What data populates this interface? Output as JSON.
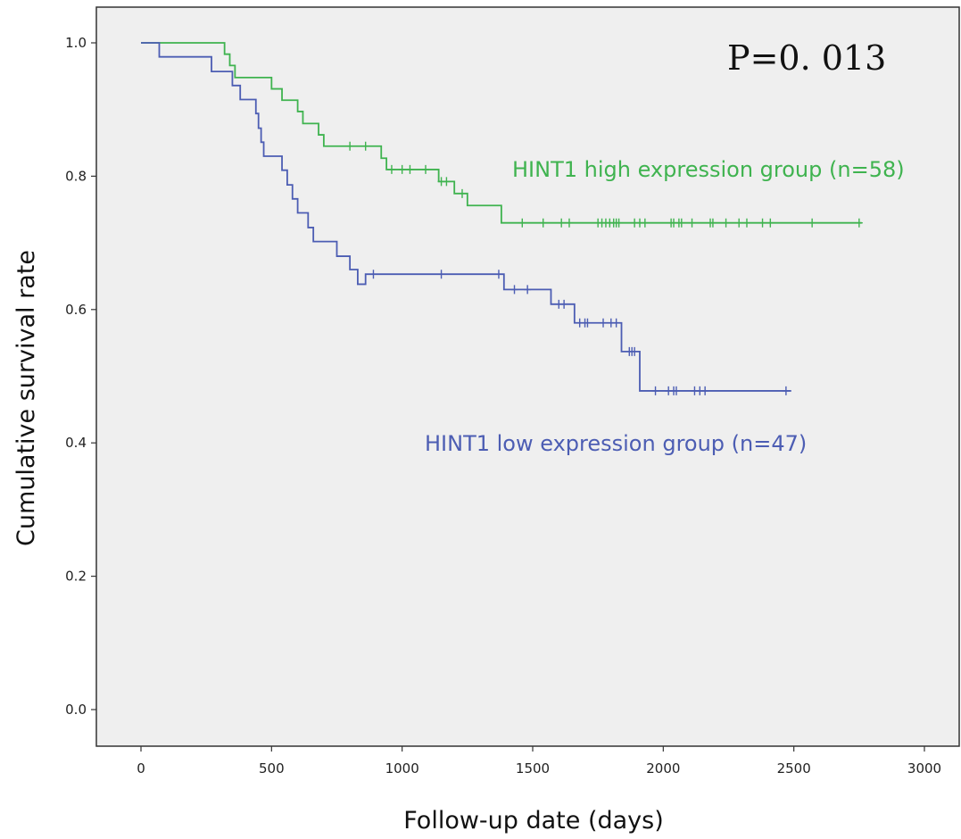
{
  "chart_data": {
    "type": "line",
    "subtype": "kaplan-meier",
    "xlabel": "Follow-up date (days)",
    "ylabel": "Cumulative survival rate",
    "xlim": [
      0,
      3000
    ],
    "ylim": [
      0,
      1.0
    ],
    "x_ticks": [
      "0",
      "500",
      "1000",
      "1500",
      "2000",
      "2500",
      "3000"
    ],
    "y_ticks": [
      "0.0",
      "0.2",
      "0.4",
      "0.6",
      "0.8",
      "1.0"
    ],
    "grid": false,
    "annotation": "P=0. 013",
    "series": [
      {
        "name": "HINT1 high expression group (n=58)",
        "color": "#3fb34f",
        "steps": [
          [
            0,
            1.0
          ],
          [
            290,
            1.0
          ],
          [
            320,
            0.983
          ],
          [
            340,
            0.966
          ],
          [
            360,
            0.948
          ],
          [
            490,
            0.948
          ],
          [
            500,
            0.931
          ],
          [
            540,
            0.914
          ],
          [
            600,
            0.897
          ],
          [
            620,
            0.879
          ],
          [
            680,
            0.862
          ],
          [
            700,
            0.845
          ],
          [
            870,
            0.845
          ],
          [
            920,
            0.827
          ],
          [
            940,
            0.81
          ],
          [
            1120,
            0.81
          ],
          [
            1140,
            0.792
          ],
          [
            1200,
            0.774
          ],
          [
            1250,
            0.756
          ],
          [
            1360,
            0.756
          ],
          [
            1380,
            0.73
          ],
          [
            2760,
            0.73
          ]
        ],
        "censored": [
          [
            800,
            0.845
          ],
          [
            860,
            0.845
          ],
          [
            960,
            0.81
          ],
          [
            1000,
            0.81
          ],
          [
            1030,
            0.81
          ],
          [
            1090,
            0.81
          ],
          [
            1150,
            0.792
          ],
          [
            1170,
            0.792
          ],
          [
            1230,
            0.774
          ],
          [
            1460,
            0.73
          ],
          [
            1540,
            0.73
          ],
          [
            1610,
            0.73
          ],
          [
            1640,
            0.73
          ],
          [
            1750,
            0.73
          ],
          [
            1765,
            0.73
          ],
          [
            1780,
            0.73
          ],
          [
            1795,
            0.73
          ],
          [
            1810,
            0.73
          ],
          [
            1820,
            0.73
          ],
          [
            1830,
            0.73
          ],
          [
            1890,
            0.73
          ],
          [
            1910,
            0.73
          ],
          [
            1930,
            0.73
          ],
          [
            2030,
            0.73
          ],
          [
            2040,
            0.73
          ],
          [
            2060,
            0.73
          ],
          [
            2070,
            0.73
          ],
          [
            2110,
            0.73
          ],
          [
            2180,
            0.73
          ],
          [
            2190,
            0.73
          ],
          [
            2240,
            0.73
          ],
          [
            2290,
            0.73
          ],
          [
            2320,
            0.73
          ],
          [
            2380,
            0.73
          ],
          [
            2410,
            0.73
          ],
          [
            2570,
            0.73
          ],
          [
            2750,
            0.73
          ]
        ]
      },
      {
        "name": "HINT1 low expression group (n=47)",
        "color": "#4c5db3",
        "steps": [
          [
            0,
            1.0
          ],
          [
            60,
            1.0
          ],
          [
            70,
            0.979
          ],
          [
            260,
            0.979
          ],
          [
            270,
            0.957
          ],
          [
            330,
            0.957
          ],
          [
            350,
            0.936
          ],
          [
            380,
            0.915
          ],
          [
            430,
            0.915
          ],
          [
            440,
            0.894
          ],
          [
            450,
            0.872
          ],
          [
            460,
            0.851
          ],
          [
            470,
            0.83
          ],
          [
            530,
            0.83
          ],
          [
            540,
            0.809
          ],
          [
            560,
            0.787
          ],
          [
            580,
            0.766
          ],
          [
            600,
            0.745
          ],
          [
            640,
            0.723
          ],
          [
            660,
            0.702
          ],
          [
            720,
            0.702
          ],
          [
            750,
            0.68
          ],
          [
            800,
            0.66
          ],
          [
            830,
            0.638
          ],
          [
            860,
            0.653
          ],
          [
            1380,
            0.653
          ],
          [
            1390,
            0.63
          ],
          [
            1560,
            0.63
          ],
          [
            1570,
            0.608
          ],
          [
            1650,
            0.608
          ],
          [
            1660,
            0.58
          ],
          [
            1830,
            0.58
          ],
          [
            1840,
            0.537
          ],
          [
            1890,
            0.537
          ],
          [
            1910,
            0.478
          ],
          [
            2490,
            0.478
          ]
        ],
        "censored": [
          [
            890,
            0.653
          ],
          [
            1150,
            0.653
          ],
          [
            1370,
            0.653
          ],
          [
            1430,
            0.63
          ],
          [
            1480,
            0.63
          ],
          [
            1600,
            0.608
          ],
          [
            1620,
            0.608
          ],
          [
            1680,
            0.58
          ],
          [
            1700,
            0.58
          ],
          [
            1710,
            0.58
          ],
          [
            1770,
            0.58
          ],
          [
            1800,
            0.58
          ],
          [
            1820,
            0.58
          ],
          [
            1870,
            0.537
          ],
          [
            1880,
            0.537
          ],
          [
            1890,
            0.537
          ],
          [
            1970,
            0.478
          ],
          [
            2020,
            0.478
          ],
          [
            2040,
            0.478
          ],
          [
            2050,
            0.478
          ],
          [
            2120,
            0.478
          ],
          [
            2140,
            0.478
          ],
          [
            2160,
            0.478
          ],
          [
            2470,
            0.478
          ]
        ]
      }
    ],
    "colors": {
      "plot_bg": "#efefef",
      "axis": "#333333"
    }
  }
}
